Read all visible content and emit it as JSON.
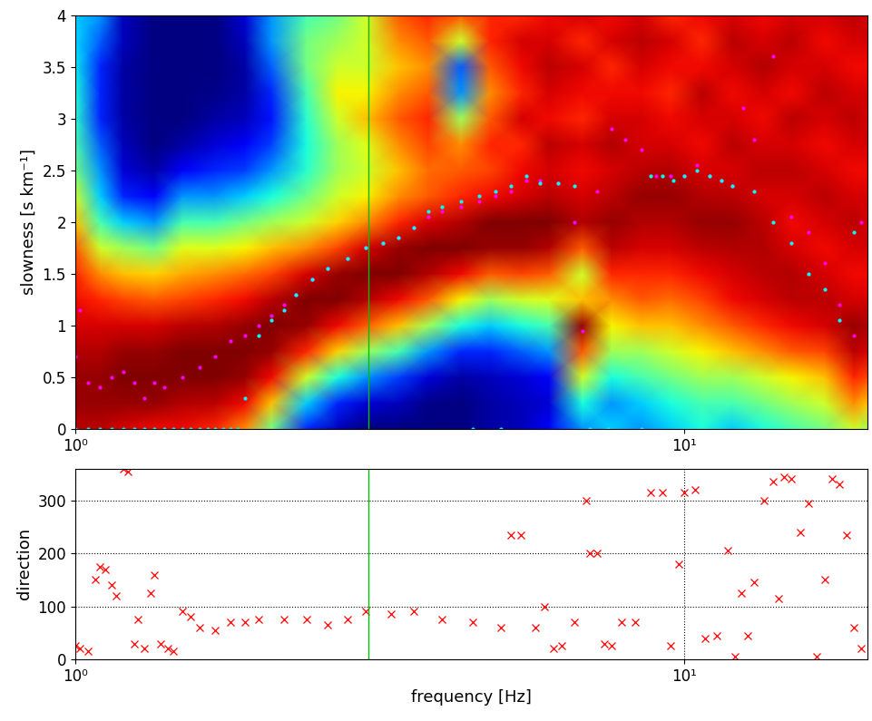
{
  "chart_data": [
    {
      "type": "heatmap",
      "ylabel": "slowness [s km⁻¹]",
      "log": "x",
      "xlim": [
        1,
        20
      ],
      "ylim": [
        0,
        4
      ],
      "xticks": [
        {
          "value": 1,
          "label": "10⁰"
        },
        {
          "value": 10,
          "label": "10¹"
        }
      ],
      "yticks": [
        0,
        0.5,
        1,
        1.5,
        2,
        2.5,
        3,
        3.5,
        4
      ],
      "vline": 3.03,
      "x": [
        1,
        1.1,
        1.2,
        1.35,
        1.5,
        1.7,
        1.9,
        2.1,
        2.4,
        2.7,
        3.0,
        3.4,
        3.8,
        4.3,
        4.8,
        5.4,
        6.0,
        6.8,
        7.6,
        8.5,
        9.5,
        10.7,
        12,
        13.5,
        15,
        17,
        19,
        20
      ],
      "y": [
        0,
        0.25,
        0.5,
        0.75,
        1,
        1.25,
        1.5,
        1.75,
        2,
        2.25,
        2.5,
        2.75,
        3,
        3.25,
        3.5,
        3.75,
        4
      ],
      "cells": [
        [
          0.92,
          0.95,
          0.95,
          0.93,
          0.9,
          0.88,
          0.85,
          0.8,
          0.7,
          0.6,
          0.5,
          0.45,
          0.42,
          0.4,
          0.38,
          0.36,
          0.35
        ],
        [
          0.92,
          0.95,
          0.95,
          0.93,
          0.9,
          0.85,
          0.75,
          0.6,
          0.45,
          0.35,
          0.3,
          0.25,
          0.2,
          0.2,
          0.2,
          0.25,
          0.3
        ],
        [
          0.9,
          0.95,
          0.97,
          0.95,
          0.9,
          0.82,
          0.7,
          0.55,
          0.35,
          0.2,
          0.12,
          0.1,
          0.08,
          0.08,
          0.08,
          0.1,
          0.1
        ],
        [
          0.88,
          0.95,
          0.97,
          0.95,
          0.9,
          0.8,
          0.68,
          0.5,
          0.3,
          0.15,
          0.08,
          0.05,
          0.05,
          0.05,
          0.05,
          0.05,
          0.05
        ],
        [
          0.88,
          0.93,
          0.97,
          0.97,
          0.92,
          0.82,
          0.72,
          0.62,
          0.45,
          0.3,
          0.15,
          0.08,
          0.05,
          0.05,
          0.05,
          0.05,
          0.05
        ],
        [
          0.85,
          0.92,
          0.97,
          0.97,
          0.93,
          0.85,
          0.75,
          0.62,
          0.45,
          0.3,
          0.2,
          0.12,
          0.08,
          0.06,
          0.05,
          0.05,
          0.05
        ],
        [
          0.75,
          0.88,
          0.95,
          0.97,
          0.95,
          0.88,
          0.78,
          0.65,
          0.5,
          0.35,
          0.22,
          0.15,
          0.1,
          0.08,
          0.08,
          0.1,
          0.12
        ],
        [
          0.5,
          0.7,
          0.88,
          0.95,
          0.97,
          0.92,
          0.82,
          0.7,
          0.55,
          0.4,
          0.3,
          0.22,
          0.18,
          0.2,
          0.25,
          0.3,
          0.3
        ],
        [
          0.2,
          0.35,
          0.6,
          0.85,
          0.95,
          0.97,
          0.9,
          0.75,
          0.6,
          0.5,
          0.42,
          0.4,
          0.42,
          0.45,
          0.5,
          0.5,
          0.45
        ],
        [
          0.1,
          0.2,
          0.4,
          0.68,
          0.88,
          0.97,
          0.95,
          0.82,
          0.68,
          0.6,
          0.55,
          0.55,
          0.6,
          0.65,
          0.6,
          0.55,
          0.5
        ],
        [
          0.05,
          0.12,
          0.3,
          0.55,
          0.8,
          0.93,
          0.97,
          0.9,
          0.75,
          0.65,
          0.6,
          0.62,
          0.7,
          0.65,
          0.6,
          0.6,
          0.6
        ],
        [
          0.05,
          0.1,
          0.22,
          0.45,
          0.7,
          0.88,
          0.97,
          0.95,
          0.85,
          0.75,
          0.7,
          0.75,
          0.8,
          0.75,
          0.7,
          0.75,
          0.8
        ],
        [
          0.05,
          0.06,
          0.12,
          0.3,
          0.55,
          0.8,
          0.93,
          0.97,
          0.9,
          0.8,
          0.78,
          0.82,
          0.85,
          0.8,
          0.75,
          0.8,
          0.85
        ],
        [
          0.05,
          0.05,
          0.08,
          0.2,
          0.4,
          0.65,
          0.88,
          0.97,
          0.93,
          0.85,
          0.8,
          0.75,
          0.55,
          0.3,
          0.25,
          0.6,
          0.8
        ],
        [
          0.08,
          0.08,
          0.1,
          0.2,
          0.35,
          0.55,
          0.8,
          0.95,
          0.97,
          0.88,
          0.82,
          0.85,
          0.8,
          0.75,
          0.8,
          0.85,
          0.85
        ],
        [
          0.1,
          0.1,
          0.12,
          0.25,
          0.4,
          0.6,
          0.82,
          0.95,
          0.97,
          0.9,
          0.88,
          0.85,
          0.9,
          0.85,
          0.88,
          0.9,
          0.85
        ],
        [
          0.15,
          0.12,
          0.15,
          0.3,
          0.45,
          0.62,
          0.8,
          0.93,
          0.97,
          0.92,
          0.9,
          0.92,
          0.88,
          0.9,
          0.92,
          0.9,
          0.88
        ],
        [
          0.3,
          0.4,
          0.6,
          0.8,
          0.95,
          0.7,
          0.6,
          0.8,
          0.93,
          0.9,
          0.88,
          0.9,
          0.85,
          0.88,
          0.9,
          0.85,
          0.9
        ],
        [
          0.35,
          0.3,
          0.4,
          0.55,
          0.65,
          0.75,
          0.85,
          0.92,
          0.95,
          0.92,
          0.9,
          0.93,
          0.9,
          0.88,
          0.85,
          0.9,
          0.88
        ],
        [
          0.3,
          0.35,
          0.45,
          0.55,
          0.7,
          0.8,
          0.85,
          0.9,
          0.93,
          0.95,
          0.92,
          0.9,
          0.9,
          0.88,
          0.9,
          0.92,
          0.9
        ],
        [
          0.35,
          0.4,
          0.5,
          0.6,
          0.7,
          0.78,
          0.85,
          0.9,
          0.93,
          0.95,
          0.93,
          0.9,
          0.88,
          0.85,
          0.88,
          0.9,
          0.85
        ],
        [
          0.4,
          0.45,
          0.55,
          0.65,
          0.75,
          0.82,
          0.88,
          0.92,
          0.95,
          0.93,
          0.9,
          0.88,
          0.9,
          0.92,
          0.88,
          0.85,
          0.88
        ],
        [
          0.35,
          0.45,
          0.55,
          0.7,
          0.8,
          0.88,
          0.9,
          0.93,
          0.95,
          0.92,
          0.9,
          0.92,
          0.9,
          0.88,
          0.9,
          0.92,
          0.9
        ],
        [
          0.4,
          0.5,
          0.6,
          0.75,
          0.85,
          0.9,
          0.92,
          0.93,
          0.92,
          0.9,
          0.92,
          0.9,
          0.88,
          0.9,
          0.93,
          0.9,
          0.88
        ],
        [
          0.45,
          0.55,
          0.65,
          0.8,
          0.88,
          0.92,
          0.93,
          0.9,
          0.88,
          0.9,
          0.92,
          0.9,
          0.92,
          0.88,
          0.9,
          0.92,
          0.9
        ],
        [
          0.5,
          0.6,
          0.7,
          0.82,
          0.9,
          0.92,
          0.9,
          0.88,
          0.9,
          0.92,
          0.9,
          0.88,
          0.9,
          0.92,
          0.9,
          0.88,
          0.9
        ],
        [
          0.6,
          0.75,
          0.85,
          0.92,
          0.95,
          0.9,
          0.88,
          0.9,
          0.92,
          0.9,
          0.88,
          0.9,
          0.92,
          0.9,
          0.88,
          0.9,
          0.92
        ],
        [
          0.55,
          0.7,
          0.82,
          0.9,
          0.93,
          0.9,
          0.88,
          0.9,
          0.9,
          0.9,
          0.88,
          0.9,
          0.9,
          0.9,
          0.88,
          0.9,
          0.9
        ]
      ],
      "series": [
        {
          "color": "magenta",
          "marker": "point",
          "x": [
            1.0,
            1.02,
            1.05,
            1.1,
            1.15,
            1.2,
            1.25,
            1.3,
            1.35,
            1.4,
            1.5,
            1.6,
            1.7,
            1.8,
            1.9,
            2.0,
            2.1,
            2.2,
            2.3,
            2.45,
            2.6,
            2.8,
            3.0,
            3.2,
            3.4,
            3.6,
            3.8,
            4.0,
            4.3,
            4.6,
            4.9,
            5.2,
            5.5,
            5.8,
            6.2,
            6.6,
            6.8,
            7.2,
            7.6,
            8.0,
            8.5,
            9.0,
            9.5,
            10,
            10.5,
            11,
            11.5,
            12,
            12.5,
            13,
            14,
            15,
            16,
            17,
            18,
            19,
            19.5
          ],
          "values": [
            0.7,
            1.15,
            0.45,
            0.4,
            0.5,
            0.55,
            0.45,
            0.3,
            0.45,
            0.4,
            0.5,
            0.6,
            0.7,
            0.85,
            0.9,
            1.0,
            1.1,
            1.2,
            1.3,
            1.45,
            1.55,
            1.65,
            1.75,
            1.8,
            1.85,
            1.95,
            2.05,
            2.1,
            2.15,
            2.2,
            2.25,
            2.3,
            2.4,
            2.4,
            2.38,
            2.0,
            0.95,
            2.3,
            2.9,
            2.8,
            2.7,
            2.45,
            2.45,
            2.45,
            2.55,
            2.45,
            2.4,
            2.35,
            3.1,
            2.8,
            3.6,
            2.05,
            1.9,
            1.6,
            1.2,
            0.9,
            2.0
          ]
        },
        {
          "color": "cyan",
          "marker": "point",
          "x": [
            1.0,
            1.05,
            1.1,
            1.15,
            1.2,
            1.25,
            1.3,
            1.35,
            1.4,
            1.45,
            1.5,
            1.55,
            1.6,
            1.65,
            1.7,
            1.75,
            1.8,
            1.85,
            1.9,
            2.0,
            2.1,
            2.2,
            2.3,
            2.45,
            2.6,
            2.8,
            3.0,
            3.2,
            3.4,
            3.6,
            3.8,
            4.0,
            4.3,
            4.5,
            4.6,
            4.9,
            5.0,
            5.2,
            5.5,
            5.8,
            6.2,
            6.6,
            7.0,
            7.5,
            8.5,
            8.8,
            9.2,
            9.6,
            10.0,
            10.5,
            11,
            11.5,
            12,
            13,
            14,
            15,
            16,
            17,
            18,
            19
          ],
          "values": [
            0,
            0,
            0,
            0,
            0,
            0,
            0,
            0,
            0,
            0,
            0,
            0,
            0,
            0,
            0,
            0,
            0,
            0,
            0.3,
            0.9,
            1.05,
            1.15,
            1.3,
            1.45,
            1.55,
            1.65,
            1.75,
            1.8,
            1.85,
            1.95,
            2.1,
            2.15,
            2.2,
            0,
            2.25,
            2.3,
            0,
            2.35,
            2.45,
            2.38,
            2.38,
            2.35,
            0,
            0,
            0,
            2.45,
            2.45,
            2.4,
            2.45,
            2.5,
            2.45,
            2.4,
            2.35,
            2.3,
            2.0,
            1.8,
            1.5,
            1.35,
            1.05,
            1.9
          ]
        }
      ]
    },
    {
      "type": "scatter",
      "xlabel": "frequency [Hz]",
      "ylabel": "direction",
      "log": "x",
      "grid": true,
      "xlim": [
        1,
        20
      ],
      "ylim": [
        0,
        360
      ],
      "xticks": [
        {
          "value": 1,
          "label": "10⁰"
        },
        {
          "value": 10,
          "label": "10¹"
        }
      ],
      "yticks": [
        0,
        100,
        200,
        300
      ],
      "vline": 3.03,
      "color": "red",
      "marker": "x",
      "x": [
        1.0,
        1.02,
        1.05,
        1.08,
        1.1,
        1.12,
        1.15,
        1.17,
        1.2,
        1.22,
        1.25,
        1.27,
        1.3,
        1.33,
        1.35,
        1.38,
        1.42,
        1.45,
        1.5,
        1.55,
        1.6,
        1.7,
        1.8,
        1.9,
        2.0,
        2.2,
        2.4,
        2.6,
        2.8,
        3.0,
        3.3,
        3.6,
        4.0,
        4.5,
        5.0,
        5.2,
        5.4,
        5.7,
        5.9,
        6.1,
        6.3,
        6.6,
        6.9,
        7.0,
        7.2,
        7.4,
        7.6,
        7.9,
        8.3,
        8.8,
        9.2,
        9.5,
        9.8,
        10.0,
        10.4,
        10.8,
        11.3,
        11.8,
        12.1,
        12.4,
        12.7,
        13.0,
        13.5,
        14.0,
        14.3,
        14.6,
        15,
        15.5,
        16,
        16.5,
        17,
        17.5,
        18,
        18.5,
        19,
        19.5
      ],
      "values": [
        25,
        20,
        15,
        150,
        175,
        170,
        140,
        120,
        360,
        355,
        30,
        75,
        20,
        125,
        160,
        30,
        20,
        15,
        90,
        80,
        60,
        55,
        70,
        70,
        75,
        75,
        75,
        65,
        75,
        90,
        85,
        90,
        75,
        70,
        60,
        235,
        235,
        60,
        100,
        20,
        25,
        70,
        300,
        200,
        200,
        30,
        25,
        70,
        70,
        315,
        315,
        25,
        180,
        315,
        320,
        40,
        45,
        205,
        5,
        125,
        45,
        145,
        300,
        335,
        115,
        345,
        340,
        240,
        295,
        5,
        150,
        340,
        330,
        235,
        60,
        20
      ]
    }
  ]
}
